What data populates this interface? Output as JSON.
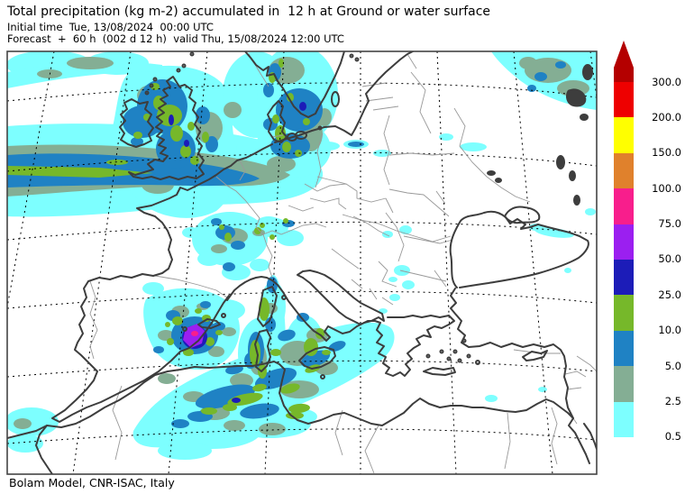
{
  "header": {
    "title": "Total precipitation (kg m-2) accumulated in  12 h at Ground or water surface",
    "initial_time": "Initial time  Tue, 13/08/2024  00:00 UTC",
    "forecast": "Forecast  +  60 h  (002 d 12 h)  valid Thu, 15/08/2024 12:00 UTC"
  },
  "footer": {
    "credit": "Bolam Model, CNR-ISAC, Italy"
  },
  "map": {
    "region": "Europe and Mediterranean",
    "projection_look": "conic with dashed lat/lon graticule",
    "coast_color": "#3d3d3d",
    "border_color": "#999999",
    "frame_color": "#444444",
    "notable_features": [
      "heavy rain band over Ireland, Great Britain and NE Atlantic",
      "rain over Denmark / south Scandinavia / Baltic coast",
      "intense cell (50-100 kg m-2) over SE Spain",
      "broad rain band over Algeria / Tunisia and Sardinia",
      "patch in far NE corner (Russia)",
      "scattered light showers over France, Alps, Balkans"
    ]
  },
  "colorbar": {
    "units": "kg m-2",
    "orientation": "vertical",
    "cells": [
      {
        "bottom_label": "300.0",
        "color": "#B40000",
        "arrow": true
      },
      {
        "bottom_label": "200.0",
        "color": "#EE0000"
      },
      {
        "bottom_label": "150.0",
        "color": "#FFFF00"
      },
      {
        "bottom_label": "100.0",
        "color": "#E0812C"
      },
      {
        "bottom_label": "75.0",
        "color": "#F81E8C"
      },
      {
        "bottom_label": "50.0",
        "color": "#9B1FF0"
      },
      {
        "bottom_label": "25.0",
        "color": "#1C1CB8"
      },
      {
        "bottom_label": "10.0",
        "color": "#76B82A"
      },
      {
        "bottom_label": "5.0",
        "color": "#1F82C4"
      },
      {
        "bottom_label": "2.5",
        "color": "#84AE94"
      },
      {
        "bottom_label": "0.5",
        "color": "#7DFFFF"
      }
    ]
  }
}
